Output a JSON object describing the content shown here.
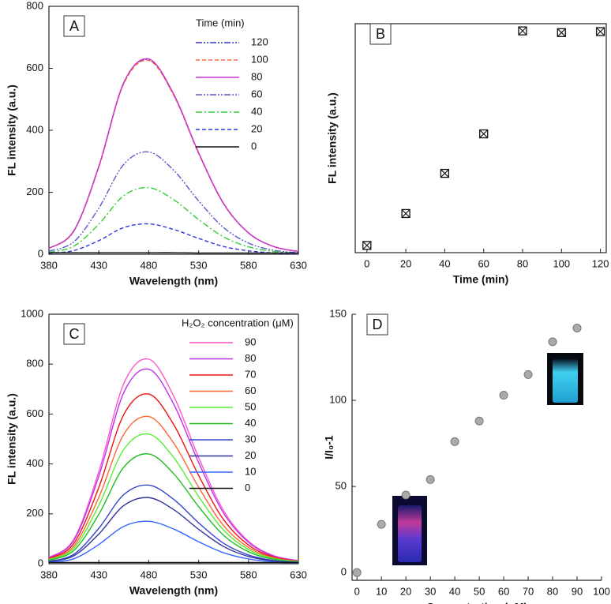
{
  "chart_data": [
    {
      "type": "line",
      "panel": "A",
      "x_label": "Wavelength (nm)",
      "y_label": "FL intensity (a.u.)",
      "x": [
        380,
        405,
        430,
        455,
        480,
        505,
        530,
        555,
        580,
        605,
        630
      ],
      "xlim": [
        380,
        630
      ],
      "xticks": [
        380,
        430,
        480,
        530,
        580,
        630
      ],
      "ylim": [
        0,
        800
      ],
      "yticks": [
        0,
        200,
        400,
        600,
        800
      ],
      "frame": true,
      "legend_title": "Time (min)",
      "legend": "upper right",
      "series": [
        {
          "name": "120",
          "color": "#3535c8",
          "style": "dash-dot-dot",
          "values": [
            19,
            75,
            283,
            553,
            628,
            515,
            327,
            163,
            69,
            25,
            9
          ]
        },
        {
          "name": "100",
          "color": "#ff6a33",
          "style": "dashed",
          "values": [
            19,
            75,
            281,
            550,
            625,
            513,
            325,
            163,
            69,
            25,
            9
          ]
        },
        {
          "name": "80",
          "color": "#cc33cc",
          "style": "solid",
          "values": [
            19,
            76,
            284,
            554,
            630,
            517,
            328,
            164,
            69,
            25,
            9
          ]
        },
        {
          "name": "60",
          "color": "#5a5ac8",
          "style": "dash-dot-dot",
          "values": [
            10,
            40,
            149,
            290,
            330,
            271,
            172,
            86,
            36,
            13,
            5
          ]
        },
        {
          "name": "40",
          "color": "#33cc33",
          "style": "dash-dot",
          "values": [
            6,
            26,
            97,
            189,
            215,
            176,
            112,
            56,
            24,
            9,
            3
          ]
        },
        {
          "name": "20",
          "color": "#2f35e0",
          "style": "dashed",
          "values": [
            3,
            12,
            44,
            86,
            98,
            80,
            51,
            25,
            11,
            4,
            1
          ]
        },
        {
          "name": "0",
          "color": "#111111",
          "style": "solid",
          "values": [
            5,
            5,
            5,
            5,
            5,
            5,
            4,
            4,
            4,
            4,
            4
          ]
        }
      ]
    },
    {
      "type": "scatter",
      "panel": "B",
      "x_label": "Time (min)",
      "y_label": "FL intensity (a.u.)",
      "x": [
        0,
        20,
        40,
        60,
        80,
        100,
        120
      ],
      "values": [
        5,
        98,
        215,
        330,
        630,
        625,
        628
      ],
      "xlim": [
        -6,
        123
      ],
      "xticks": [
        0,
        20,
        40,
        60,
        80,
        100,
        120
      ],
      "ylim": [
        -16,
        651
      ],
      "frame": true,
      "marker": "square-x",
      "color": "#111111"
    },
    {
      "type": "line",
      "panel": "C",
      "x_label": "Wavelength (nm)",
      "y_label": "FL intensity (a.u.)",
      "x": [
        380,
        405,
        430,
        455,
        480,
        505,
        530,
        555,
        580,
        605,
        630
      ],
      "xlim": [
        380,
        630
      ],
      "xticks": [
        380,
        430,
        480,
        530,
        580,
        630
      ],
      "ylim": [
        0,
        1000
      ],
      "yticks": [
        0,
        200,
        400,
        600,
        800,
        1000
      ],
      "frame": true,
      "legend_title": "H₂O₂ concentration (μM)",
      "legend": "upper right",
      "series": [
        {
          "name": "90",
          "color": "#ff55cc",
          "style": "solid",
          "values": [
            25,
            98,
            369,
            722,
            820,
            672,
            426,
            213,
            90,
            33,
            12
          ]
        },
        {
          "name": "80",
          "color": "#bb33ee",
          "style": "solid",
          "values": [
            23,
            94,
            351,
            686,
            780,
            640,
            406,
            203,
            86,
            31,
            12
          ]
        },
        {
          "name": "70",
          "color": "#ee1111",
          "style": "solid",
          "values": [
            20,
            82,
            306,
            598,
            680,
            558,
            354,
            177,
            75,
            27,
            10
          ]
        },
        {
          "name": "60",
          "color": "#ff6633",
          "style": "solid",
          "values": [
            18,
            71,
            266,
            519,
            590,
            484,
            307,
            153,
            65,
            24,
            9
          ]
        },
        {
          "name": "50",
          "color": "#55ee33",
          "style": "solid",
          "values": [
            16,
            62,
            234,
            458,
            520,
            426,
            270,
            135,
            57,
            21,
            8
          ]
        },
        {
          "name": "40",
          "color": "#22bb22",
          "style": "solid",
          "values": [
            13,
            53,
            198,
            387,
            440,
            361,
            229,
            114,
            48,
            18,
            7
          ]
        },
        {
          "name": "30",
          "color": "#3344cc",
          "style": "solid",
          "values": [
            9,
            38,
            142,
            277,
            315,
            258,
            164,
            82,
            35,
            13,
            5
          ]
        },
        {
          "name": "20",
          "color": "#333399",
          "style": "solid",
          "values": [
            8,
            32,
            119,
            233,
            265,
            217,
            138,
            69,
            29,
            11,
            4
          ]
        },
        {
          "name": "10",
          "color": "#3366ff",
          "style": "solid",
          "values": [
            5,
            20,
            77,
            150,
            170,
            139,
            88,
            44,
            19,
            7,
            3
          ]
        },
        {
          "name": "0",
          "color": "#111111",
          "style": "solid",
          "values": [
            5,
            5,
            5,
            5,
            5,
            5,
            5,
            5,
            5,
            5,
            5
          ]
        }
      ]
    },
    {
      "type": "scatter",
      "panel": "D",
      "x_label": "Concentration (μM)",
      "y_label": "I/I₀-1",
      "x": [
        0,
        10,
        20,
        30,
        40,
        50,
        60,
        70,
        80,
        90
      ],
      "values": [
        0,
        28,
        45,
        54,
        76,
        88,
        103,
        115,
        134,
        142
      ],
      "xlim": [
        -2,
        100
      ],
      "xticks": [
        0,
        10,
        20,
        30,
        40,
        50,
        60,
        70,
        80,
        90,
        100
      ],
      "ylim": [
        -4.5,
        150
      ],
      "yticks": [
        0,
        50,
        100,
        150
      ],
      "frame": false,
      "marker": "circle",
      "color": "#aaaaaa"
    }
  ]
}
